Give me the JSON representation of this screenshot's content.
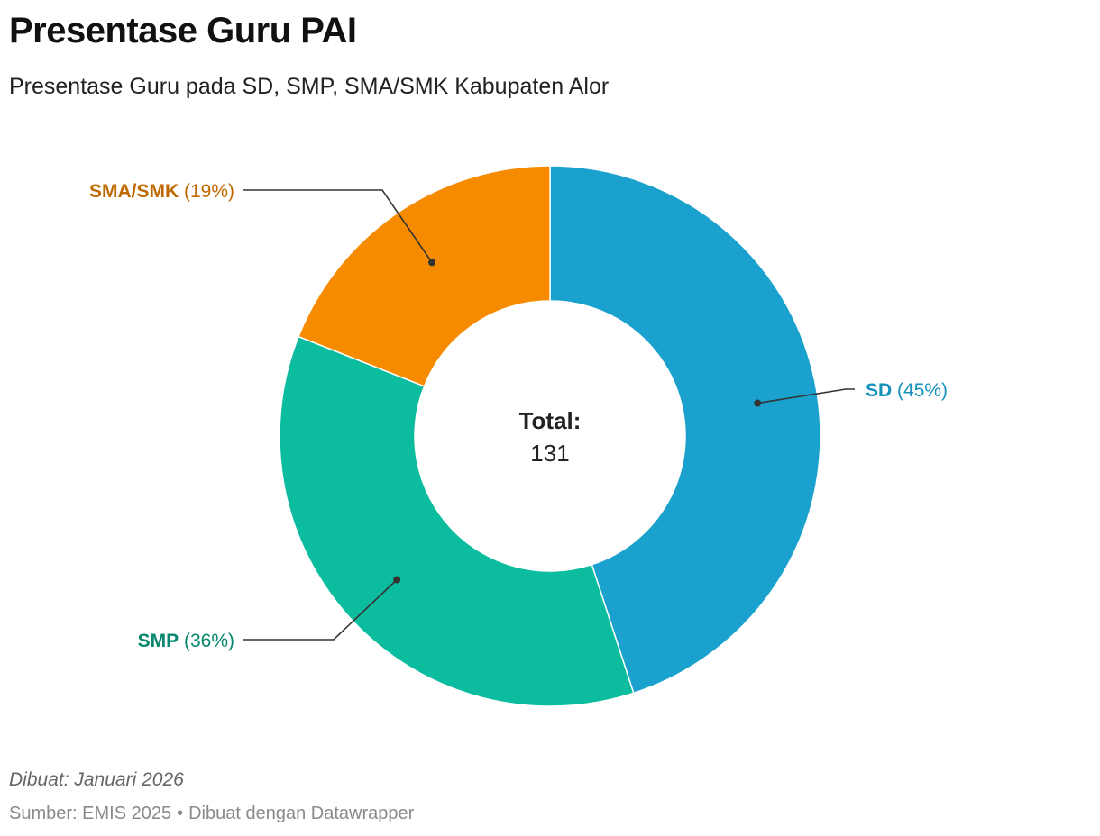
{
  "header": {
    "title": "Presentase Guru PAI",
    "subtitle": "Presentase Guru pada SD, SMP, SMA/SMK Kabupaten Alor"
  },
  "chart_data": {
    "type": "pie",
    "donut": true,
    "title": "Presentase Guru PAI",
    "subtitle": "Presentase Guru pada SD, SMP, SMA/SMK Kabupaten Alor",
    "center_label": {
      "title": "Total:",
      "value": "131"
    },
    "slices": [
      {
        "label": "SD",
        "percent": 45,
        "percent_text": "(45%)",
        "color": "#1aa1ce",
        "label_color": "#1391bb"
      },
      {
        "label": "SMP",
        "percent": 36,
        "percent_text": "(36%)",
        "color": "#0bbc9f",
        "label_color": "#07876f"
      },
      {
        "label": "SMA/SMK",
        "percent": 19,
        "percent_text": "(19%)",
        "color": "#f78b00",
        "label_color": "#c06800"
      }
    ]
  },
  "footer": {
    "note": "Dibuat: Januari 2026",
    "source_prefix": "Sumber: EMIS 2025",
    "separator": "•",
    "made_with": "Dibuat dengan Datawrapper"
  }
}
